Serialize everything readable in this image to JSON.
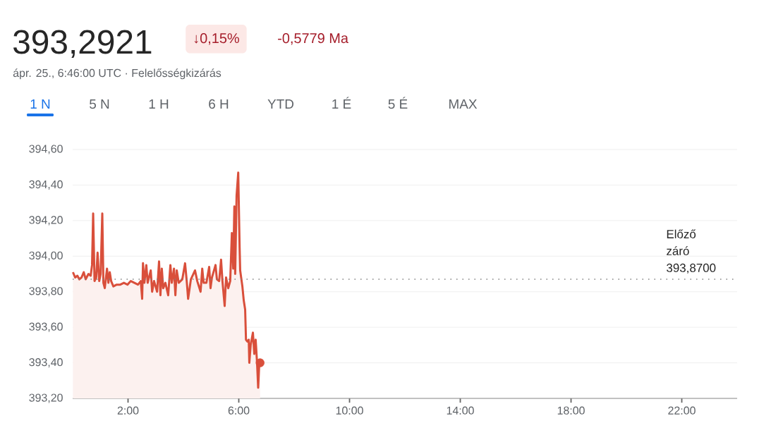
{
  "chart_data": {
    "type": "area",
    "title": "393,2921",
    "annotations": [
      "↓0,15%",
      "-0,5779 Ma",
      "ápr. 25., 6:46:00 UTC · Felelősségkizárás",
      "1 N",
      "5 N",
      "1 H",
      "6 H",
      "YTD",
      "1 É",
      "5 É",
      "MAX"
    ],
    "series": [
      {
        "color": "#d94f3b",
        "x": [
          0.01,
          0.09,
          0.17,
          0.24,
          0.32,
          0.4,
          0.47,
          0.57,
          0.65,
          0.7,
          0.74,
          0.79,
          0.85,
          0.9,
          0.96,
          1.01,
          1.07,
          1.11,
          1.16,
          1.24,
          1.29,
          1.34,
          1.39,
          1.47,
          1.59,
          1.72,
          1.85,
          1.98,
          2.1,
          2.23,
          2.36,
          2.46,
          2.51,
          2.54,
          2.59,
          2.66,
          2.71,
          2.82,
          2.87,
          2.94,
          3.05,
          3.12,
          3.17,
          3.22,
          3.27,
          3.35,
          3.45,
          3.53,
          3.58,
          3.66,
          3.71,
          3.76,
          3.83,
          3.96,
          4.06,
          4.12,
          4.17,
          4.27,
          4.42,
          4.5,
          4.62,
          4.68,
          4.73,
          4.83,
          4.93,
          4.98,
          5.03,
          5.16,
          5.21,
          5.29,
          5.36,
          5.41,
          5.49,
          5.54,
          5.62,
          5.69,
          5.75,
          5.8,
          5.84,
          5.87,
          5.92,
          5.98,
          6.03,
          6.05,
          6.13,
          6.18,
          6.23,
          6.26,
          6.31,
          6.36,
          6.38,
          6.43,
          6.51,
          6.56,
          6.61,
          6.66,
          6.7,
          6.74,
          6.77
        ],
        "values": [
          393.91,
          393.88,
          393.89,
          393.87,
          393.88,
          393.91,
          393.87,
          393.9,
          393.89,
          393.95,
          394.24,
          393.86,
          393.88,
          394.02,
          393.86,
          393.9,
          394.24,
          393.85,
          393.82,
          393.93,
          393.85,
          393.91,
          393.86,
          393.83,
          393.84,
          393.84,
          393.85,
          393.84,
          393.86,
          393.85,
          393.84,
          393.86,
          393.76,
          393.96,
          393.85,
          393.95,
          393.85,
          393.92,
          393.8,
          393.86,
          393.8,
          393.97,
          393.78,
          393.93,
          393.82,
          393.85,
          393.78,
          393.95,
          393.85,
          393.93,
          393.78,
          393.92,
          393.85,
          393.87,
          393.96,
          393.86,
          393.76,
          393.87,
          393.92,
          393.86,
          393.8,
          393.93,
          393.85,
          393.85,
          393.94,
          393.82,
          393.88,
          393.95,
          393.87,
          393.86,
          393.98,
          393.86,
          393.72,
          393.88,
          393.82,
          393.86,
          394.13,
          393.93,
          394.28,
          393.9,
          394.34,
          394.47,
          394.05,
          393.92,
          393.83,
          393.75,
          393.7,
          393.53,
          393.52,
          393.53,
          393.4,
          393.5,
          393.57,
          393.45,
          393.53,
          393.4,
          393.26,
          393.4,
          393.4
        ]
      },
      {
        "type": "scatter",
        "color": "#d94f3b",
        "marker": "circle",
        "x": [
          6.77
        ],
        "values": [
          393.4
        ]
      }
    ],
    "xlim": [
      0,
      24
    ],
    "xticks": [
      {
        "value": 2,
        "label": "2:00"
      },
      {
        "value": 6,
        "label": "6:00"
      },
      {
        "value": 10,
        "label": "10:00"
      },
      {
        "value": 14,
        "label": "14:00"
      },
      {
        "value": 18,
        "label": "18:00"
      },
      {
        "value": 22,
        "label": "22:00"
      }
    ],
    "ylim": [
      393.2,
      394.6
    ],
    "yticks": [
      {
        "value": 393.2,
        "label": "393,20"
      },
      {
        "value": 393.4,
        "label": "393,40"
      },
      {
        "value": 393.6,
        "label": "393,60"
      },
      {
        "value": 393.8,
        "label": "393,80"
      },
      {
        "value": 394.0,
        "label": "394,00"
      },
      {
        "value": 394.2,
        "label": "394,20"
      },
      {
        "value": 394.4,
        "label": "394,40"
      },
      {
        "value": 394.6,
        "label": "394,60"
      }
    ],
    "ref_lines": [
      {
        "axis": "y",
        "value": 393.87,
        "label": "Előző záró 393,8700",
        "color": "#808080",
        "line_style": "dotted"
      }
    ],
    "grid": "y",
    "marker": "none",
    "line_style": "solid"
  }
}
